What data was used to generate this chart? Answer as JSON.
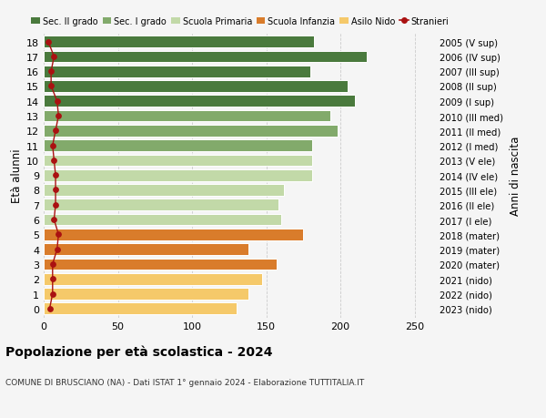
{
  "ages": [
    18,
    17,
    16,
    15,
    14,
    13,
    12,
    11,
    10,
    9,
    8,
    7,
    6,
    5,
    4,
    3,
    2,
    1,
    0
  ],
  "years": [
    "2005 (V sup)",
    "2006 (IV sup)",
    "2007 (III sup)",
    "2008 (II sup)",
    "2009 (I sup)",
    "2010 (III med)",
    "2011 (II med)",
    "2012 (I med)",
    "2013 (V ele)",
    "2014 (IV ele)",
    "2015 (III ele)",
    "2016 (II ele)",
    "2017 (I ele)",
    "2018 (mater)",
    "2019 (mater)",
    "2020 (mater)",
    "2021 (nido)",
    "2022 (nido)",
    "2023 (nido)"
  ],
  "values": [
    182,
    218,
    180,
    205,
    210,
    193,
    198,
    181,
    181,
    181,
    162,
    158,
    160,
    175,
    138,
    157,
    147,
    138,
    130
  ],
  "stranieri": [
    3,
    7,
    5,
    5,
    9,
    10,
    8,
    6,
    7,
    8,
    8,
    8,
    7,
    10,
    9,
    6,
    6,
    6,
    4
  ],
  "bar_colors": [
    "#4a7a3d",
    "#4a7a3d",
    "#4a7a3d",
    "#4a7a3d",
    "#4a7a3d",
    "#82aa6b",
    "#82aa6b",
    "#82aa6b",
    "#c2d9a8",
    "#c2d9a8",
    "#c2d9a8",
    "#c2d9a8",
    "#c2d9a8",
    "#d97c2b",
    "#d97c2b",
    "#d97c2b",
    "#f5c96a",
    "#f5c96a",
    "#f5c96a"
  ],
  "xlim": [
    0,
    265
  ],
  "xticks": [
    0,
    50,
    100,
    150,
    200,
    250
  ],
  "title": "Popolazione per età scolastica - 2024",
  "subtitle": "COMUNE DI BRUSCIANO (NA) - Dati ISTAT 1° gennaio 2024 - Elaborazione TUTTITALIA.IT",
  "ylabel": "Età alunni",
  "right_label": "Anni di nascita",
  "legend_labels": [
    "Sec. II grado",
    "Sec. I grado",
    "Scuola Primaria",
    "Scuola Infanzia",
    "Asilo Nido",
    "Stranieri"
  ],
  "legend_colors": [
    "#4a7a3d",
    "#82aa6b",
    "#c2d9a8",
    "#d97c2b",
    "#f5c96a",
    "#cc2222"
  ],
  "stranieri_color": "#aa1111",
  "background_color": "#f5f5f5",
  "bar_height": 0.78
}
